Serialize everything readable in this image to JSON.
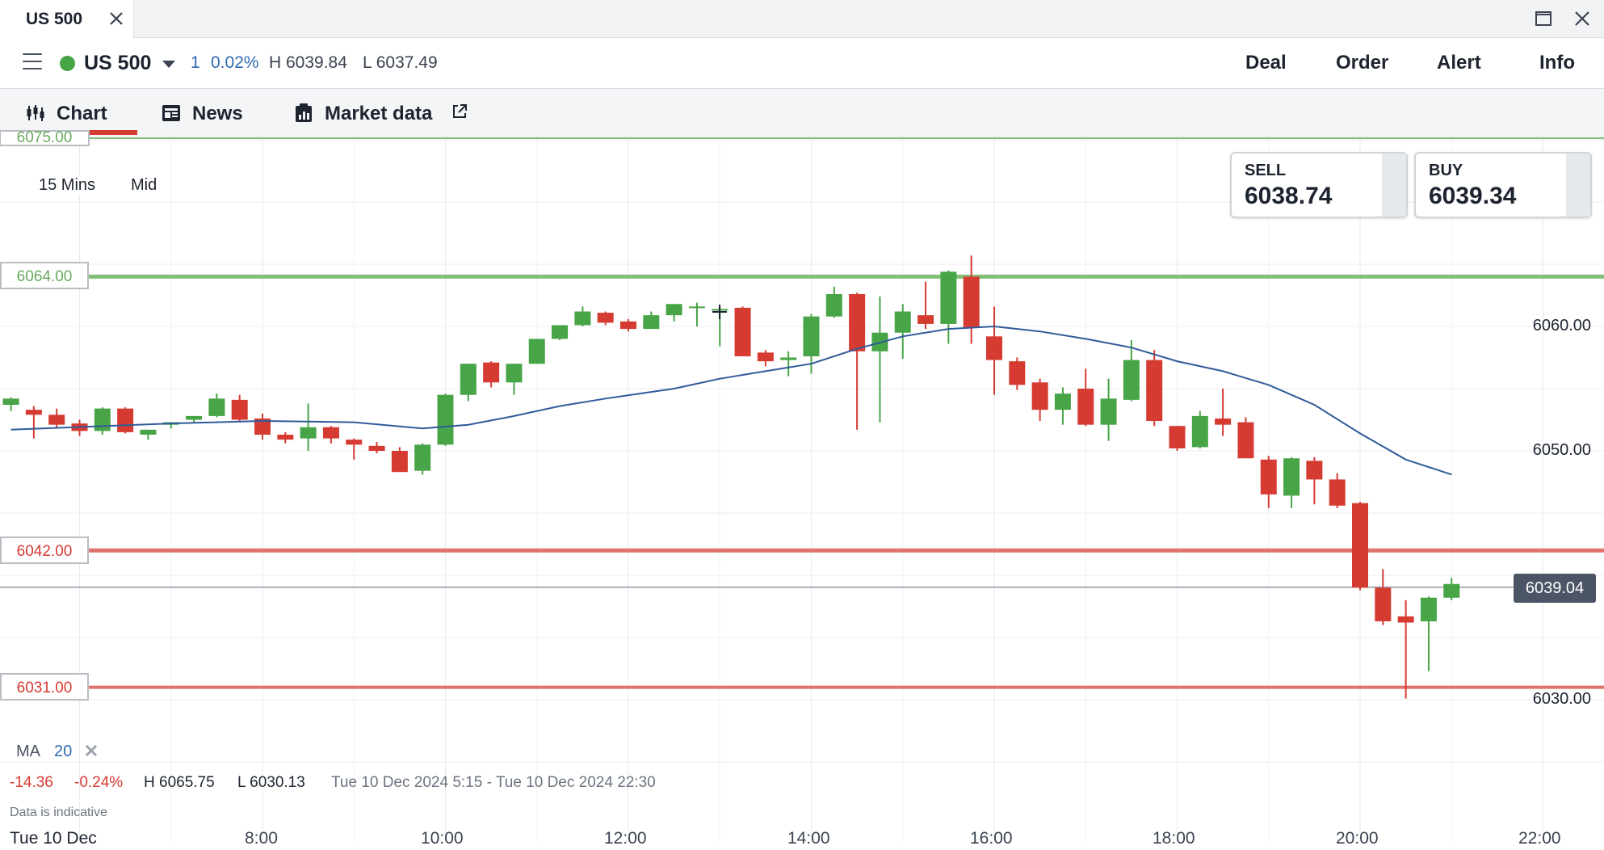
{
  "window": {
    "tab_title": "US 500"
  },
  "header": {
    "instrument": "US 500",
    "change_points": "1",
    "change_percent": "0.02%",
    "high": "H 6039.84",
    "low": "L 6037.49",
    "menu": [
      "Deal",
      "Order",
      "Alert",
      "Info"
    ]
  },
  "subnav": {
    "chart": "Chart",
    "news": "News",
    "market_data": "Market data"
  },
  "toolbar": {
    "interval": "15 Mins",
    "price_type": "Mid"
  },
  "prices": {
    "sell_label": "SELL",
    "sell": "6038.74",
    "buy_label": "BUY",
    "buy": "6039.34"
  },
  "levels": {
    "top_partial": "6075.00",
    "green": "6064.00",
    "red1": "6042.00",
    "red2": "6031.00"
  },
  "y_axis": [
    "6060.00",
    "6050.00",
    "6030.00"
  ],
  "current_price": "6039.04",
  "x_axis": [
    "Tue 10 Dec",
    "8:00",
    "10:00",
    "12:00",
    "14:00",
    "16:00",
    "18:00",
    "20:00",
    "22:00"
  ],
  "ma": {
    "label": "MA",
    "period": "20"
  },
  "stats": {
    "change": "-14.36",
    "change_pct": "-0.24%",
    "high": "H 6065.75",
    "low": "L 6030.13",
    "range": "Tue 10 Dec 2024 5:15 - Tue 10 Dec 2024 22:30"
  },
  "footnote": "Data is indicative",
  "colors": {
    "up": "#47a447",
    "down": "#d63b32",
    "ma": "#2f5b9a",
    "green_level": "#82c07a",
    "red_level": "#e0736b"
  },
  "chart_data": {
    "type": "candlestick",
    "interval": "15 Mins",
    "ylim": [
      6025.5,
      6075.5
    ],
    "xlim": [
      "5:15",
      "22:30"
    ],
    "levels": [
      6075.0,
      6064.0,
      6042.0,
      6031.0
    ],
    "current": 6039.04,
    "candles": [
      {
        "t": "5:15",
        "o": 6053.7,
        "h": 6054.3,
        "l": 6053.2,
        "c": 6054.2
      },
      {
        "t": "5:30",
        "o": 6053.3,
        "h": 6053.6,
        "l": 6051.0,
        "c": 6052.9
      },
      {
        "t": "5:45",
        "o": 6052.9,
        "h": 6053.4,
        "l": 6051.9,
        "c": 6052.1
      },
      {
        "t": "6:00",
        "o": 6052.2,
        "h": 6052.5,
        "l": 6051.2,
        "c": 6051.6
      },
      {
        "t": "6:15",
        "o": 6051.6,
        "h": 6053.5,
        "l": 6051.3,
        "c": 6053.4
      },
      {
        "t": "6:30",
        "o": 6053.4,
        "h": 6053.5,
        "l": 6051.4,
        "c": 6051.5
      },
      {
        "t": "6:45",
        "o": 6051.3,
        "h": 6051.7,
        "l": 6050.9,
        "c": 6051.7
      },
      {
        "t": "7:00",
        "o": 6052.1,
        "h": 6052.3,
        "l": 6051.8,
        "c": 6052.3
      },
      {
        "t": "7:15",
        "o": 6052.5,
        "h": 6052.8,
        "l": 6052.2,
        "c": 6052.8
      },
      {
        "t": "7:30",
        "o": 6052.8,
        "h": 6054.6,
        "l": 6052.7,
        "c": 6054.2
      },
      {
        "t": "7:45",
        "o": 6054.1,
        "h": 6054.5,
        "l": 6052.3,
        "c": 6052.5
      },
      {
        "t": "8:00",
        "o": 6052.6,
        "h": 6053.0,
        "l": 6050.9,
        "c": 6051.3
      },
      {
        "t": "8:15",
        "o": 6051.3,
        "h": 6051.5,
        "l": 6050.6,
        "c": 6050.9
      },
      {
        "t": "8:30",
        "o": 6051.0,
        "h": 6053.8,
        "l": 6050.0,
        "c": 6051.9
      },
      {
        "t": "8:45",
        "o": 6051.9,
        "h": 6052.0,
        "l": 6050.6,
        "c": 6051.0
      },
      {
        "t": "9:00",
        "o": 6050.9,
        "h": 6051.0,
        "l": 6049.3,
        "c": 6050.5
      },
      {
        "t": "9:15",
        "o": 6050.4,
        "h": 6050.7,
        "l": 6049.8,
        "c": 6050.0
      },
      {
        "t": "9:30",
        "o": 6050.0,
        "h": 6050.3,
        "l": 6048.3,
        "c": 6048.3
      },
      {
        "t": "9:45",
        "o": 6048.4,
        "h": 6050.6,
        "l": 6048.1,
        "c": 6050.5
      },
      {
        "t": "10:00",
        "o": 6050.5,
        "h": 6054.6,
        "l": 6050.4,
        "c": 6054.5
      },
      {
        "t": "10:15",
        "o": 6054.5,
        "h": 6057.0,
        "l": 6054.0,
        "c": 6057.0
      },
      {
        "t": "10:30",
        "o": 6057.1,
        "h": 6057.2,
        "l": 6055.1,
        "c": 6055.5
      },
      {
        "t": "10:45",
        "o": 6055.5,
        "h": 6057.0,
        "l": 6054.5,
        "c": 6057.0
      },
      {
        "t": "11:00",
        "o": 6057.0,
        "h": 6059.0,
        "l": 6057.0,
        "c": 6059.0
      },
      {
        "t": "11:15",
        "o": 6059.0,
        "h": 6060.1,
        "l": 6058.9,
        "c": 6060.1
      },
      {
        "t": "11:30",
        "o": 6060.1,
        "h": 6061.6,
        "l": 6060.0,
        "c": 6061.2
      },
      {
        "t": "11:45",
        "o": 6061.1,
        "h": 6061.2,
        "l": 6060.1,
        "c": 6060.3
      },
      {
        "t": "12:00",
        "o": 6060.4,
        "h": 6060.6,
        "l": 6059.6,
        "c": 6059.8
      },
      {
        "t": "12:15",
        "o": 6059.8,
        "h": 6061.2,
        "l": 6059.8,
        "c": 6060.9
      },
      {
        "t": "12:30",
        "o": 6060.9,
        "h": 6061.8,
        "l": 6060.4,
        "c": 6061.8
      },
      {
        "t": "12:45",
        "o": 6061.5,
        "h": 6061.9,
        "l": 6060.0,
        "c": 6061.6
      },
      {
        "t": "13:00",
        "o": 6061.4,
        "h": 6061.6,
        "l": 6058.4,
        "c": 6061.4
      },
      {
        "t": "13:15",
        "o": 6061.5,
        "h": 6061.6,
        "l": 6057.6,
        "c": 6057.6
      },
      {
        "t": "13:30",
        "o": 6057.9,
        "h": 6058.1,
        "l": 6056.8,
        "c": 6057.2
      },
      {
        "t": "13:45",
        "o": 6057.3,
        "h": 6058.0,
        "l": 6056.0,
        "c": 6057.5
      },
      {
        "t": "14:00",
        "o": 6057.6,
        "h": 6061.0,
        "l": 6056.2,
        "c": 6060.8
      },
      {
        "t": "14:15",
        "o": 6060.8,
        "h": 6063.2,
        "l": 6060.7,
        "c": 6062.6
      },
      {
        "t": "14:30",
        "o": 6062.6,
        "h": 6062.7,
        "l": 6051.7,
        "c": 6058.0
      },
      {
        "t": "14:45",
        "o": 6058.0,
        "h": 6062.4,
        "l": 6052.3,
        "c": 6059.5
      },
      {
        "t": "15:00",
        "o": 6059.5,
        "h": 6061.8,
        "l": 6057.4,
        "c": 6061.2
      },
      {
        "t": "15:15",
        "o": 6060.9,
        "h": 6063.6,
        "l": 6059.8,
        "c": 6060.2
      },
      {
        "t": "15:30",
        "o": 6060.2,
        "h": 6064.5,
        "l": 6058.6,
        "c": 6064.4
      },
      {
        "t": "15:45",
        "o": 6064.0,
        "h": 6065.7,
        "l": 6058.6,
        "c": 6059.9
      },
      {
        "t": "16:00",
        "o": 6059.2,
        "h": 6061.6,
        "l": 6054.5,
        "c": 6057.3
      },
      {
        "t": "16:15",
        "o": 6057.2,
        "h": 6057.5,
        "l": 6054.9,
        "c": 6055.3
      },
      {
        "t": "16:30",
        "o": 6055.5,
        "h": 6055.8,
        "l": 6052.4,
        "c": 6053.3
      },
      {
        "t": "16:45",
        "o": 6053.3,
        "h": 6055.1,
        "l": 6052.1,
        "c": 6054.6
      },
      {
        "t": "17:00",
        "o": 6055.0,
        "h": 6056.6,
        "l": 6052.0,
        "c": 6052.1
      },
      {
        "t": "17:15",
        "o": 6052.1,
        "h": 6055.8,
        "l": 6050.8,
        "c": 6054.2
      },
      {
        "t": "17:30",
        "o": 6054.1,
        "h": 6058.9,
        "l": 6054.0,
        "c": 6057.3
      },
      {
        "t": "17:45",
        "o": 6057.3,
        "h": 6058.1,
        "l": 6052.0,
        "c": 6052.4
      },
      {
        "t": "18:00",
        "o": 6052.0,
        "h": 6052.0,
        "l": 6050.0,
        "c": 6050.2
      },
      {
        "t": "18:15",
        "o": 6050.3,
        "h": 6053.2,
        "l": 6050.2,
        "c": 6052.8
      },
      {
        "t": "18:30",
        "o": 6052.6,
        "h": 6055.0,
        "l": 6051.2,
        "c": 6052.1
      },
      {
        "t": "18:45",
        "o": 6052.3,
        "h": 6052.7,
        "l": 6049.4,
        "c": 6049.4
      },
      {
        "t": "19:00",
        "o": 6049.3,
        "h": 6049.6,
        "l": 6045.4,
        "c": 6046.5
      },
      {
        "t": "19:15",
        "o": 6046.4,
        "h": 6049.5,
        "l": 6045.4,
        "c": 6049.4
      },
      {
        "t": "19:30",
        "o": 6049.2,
        "h": 6049.5,
        "l": 6045.7,
        "c": 6047.7
      },
      {
        "t": "19:45",
        "o": 6047.7,
        "h": 6048.2,
        "l": 6045.4,
        "c": 6045.6
      },
      {
        "t": "20:00",
        "o": 6045.8,
        "h": 6045.9,
        "l": 6038.8,
        "c": 6039.0
      },
      {
        "t": "20:15",
        "o": 6039.0,
        "h": 6040.5,
        "l": 6036.0,
        "c": 6036.3
      },
      {
        "t": "20:30",
        "o": 6036.7,
        "h": 6038.0,
        "l": 6030.1,
        "c": 6036.2
      },
      {
        "t": "20:45",
        "o": 6036.3,
        "h": 6038.3,
        "l": 6032.3,
        "c": 6038.2
      },
      {
        "t": "21:00",
        "o": 6038.2,
        "h": 6039.8,
        "l": 6038.0,
        "c": 6039.3
      }
    ],
    "ma20": [
      {
        "t": "5:15",
        "v": 6051.7
      },
      {
        "t": "7:00",
        "v": 6052.2
      },
      {
        "t": "8:00",
        "v": 6052.4
      },
      {
        "t": "9:00",
        "v": 6052.3
      },
      {
        "t": "9:45",
        "v": 6051.8
      },
      {
        "t": "10:15",
        "v": 6052.1
      },
      {
        "t": "10:45",
        "v": 6052.8
      },
      {
        "t": "11:15",
        "v": 6053.6
      },
      {
        "t": "11:45",
        "v": 6054.2
      },
      {
        "t": "12:30",
        "v": 6055.0
      },
      {
        "t": "13:00",
        "v": 6055.8
      },
      {
        "t": "13:30",
        "v": 6056.4
      },
      {
        "t": "14:00",
        "v": 6057.0
      },
      {
        "t": "14:30",
        "v": 6058.2
      },
      {
        "t": "15:00",
        "v": 6059.2
      },
      {
        "t": "15:30",
        "v": 6059.8
      },
      {
        "t": "16:00",
        "v": 6060.0
      },
      {
        "t": "16:30",
        "v": 6059.6
      },
      {
        "t": "17:00",
        "v": 6059.0
      },
      {
        "t": "17:30",
        "v": 6058.3
      },
      {
        "t": "18:00",
        "v": 6057.2
      },
      {
        "t": "18:30",
        "v": 6056.4
      },
      {
        "t": "19:00",
        "v": 6055.3
      },
      {
        "t": "19:30",
        "v": 6053.7
      },
      {
        "t": "20:00",
        "v": 6051.4
      },
      {
        "t": "20:30",
        "v": 6049.3
      },
      {
        "t": "21:00",
        "v": 6048.1
      }
    ]
  }
}
